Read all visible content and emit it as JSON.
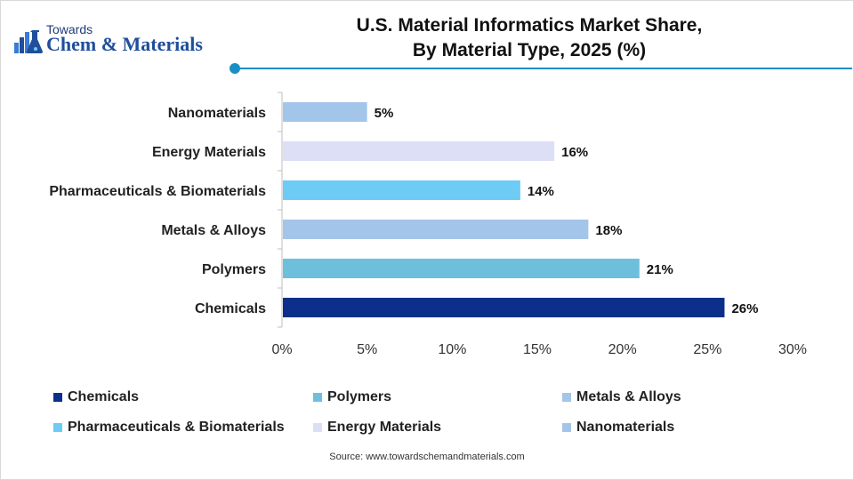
{
  "brand": {
    "towards": "Towards",
    "name": "Chem & Materials"
  },
  "chart_data": {
    "type": "bar",
    "orientation": "horizontal",
    "title": "U.S. Material Informatics Market Share, By Material Type, 2025 (%)",
    "title_lines": [
      "U.S. Material Informatics Market Share,",
      "By Material Type, 2025 (%)"
    ],
    "categories": [
      "Nanomaterials",
      "Energy Materials",
      "Pharmaceuticals & Biomaterials",
      "Metals & Alloys",
      "Polymers",
      "Chemicals"
    ],
    "values": [
      5,
      16,
      14,
      18,
      21,
      26
    ],
    "data_labels": [
      "5%",
      "16%",
      "14%",
      "18%",
      "21%",
      "26%"
    ],
    "colors": [
      "#a4c5ea",
      "#dcdff5",
      "#6ecbf5",
      "#a4c5ea",
      "#6ebfdc",
      "#0b2f8a"
    ],
    "xlim": [
      0,
      30
    ],
    "x_ticks": [
      0,
      5,
      10,
      15,
      20,
      25,
      30
    ],
    "x_tick_labels": [
      "0%",
      "5%",
      "10%",
      "15%",
      "20%",
      "25%",
      "30%"
    ],
    "grid": false,
    "legend_position": "bottom",
    "legend": [
      {
        "label": "Chemicals",
        "color": "#0b2f8a"
      },
      {
        "label": "Polymers",
        "color": "#6ebfdc"
      },
      {
        "label": "Metals & Alloys",
        "color": "#a4c5ea"
      },
      {
        "label": "Pharmaceuticals & Biomaterials",
        "color": "#6ecbf5"
      },
      {
        "label": "Energy Materials",
        "color": "#dcdff5"
      },
      {
        "label": "Nanomaterials",
        "color": "#a4c5ea"
      }
    ]
  },
  "source": "Source: www.towardschemandmaterials.com"
}
